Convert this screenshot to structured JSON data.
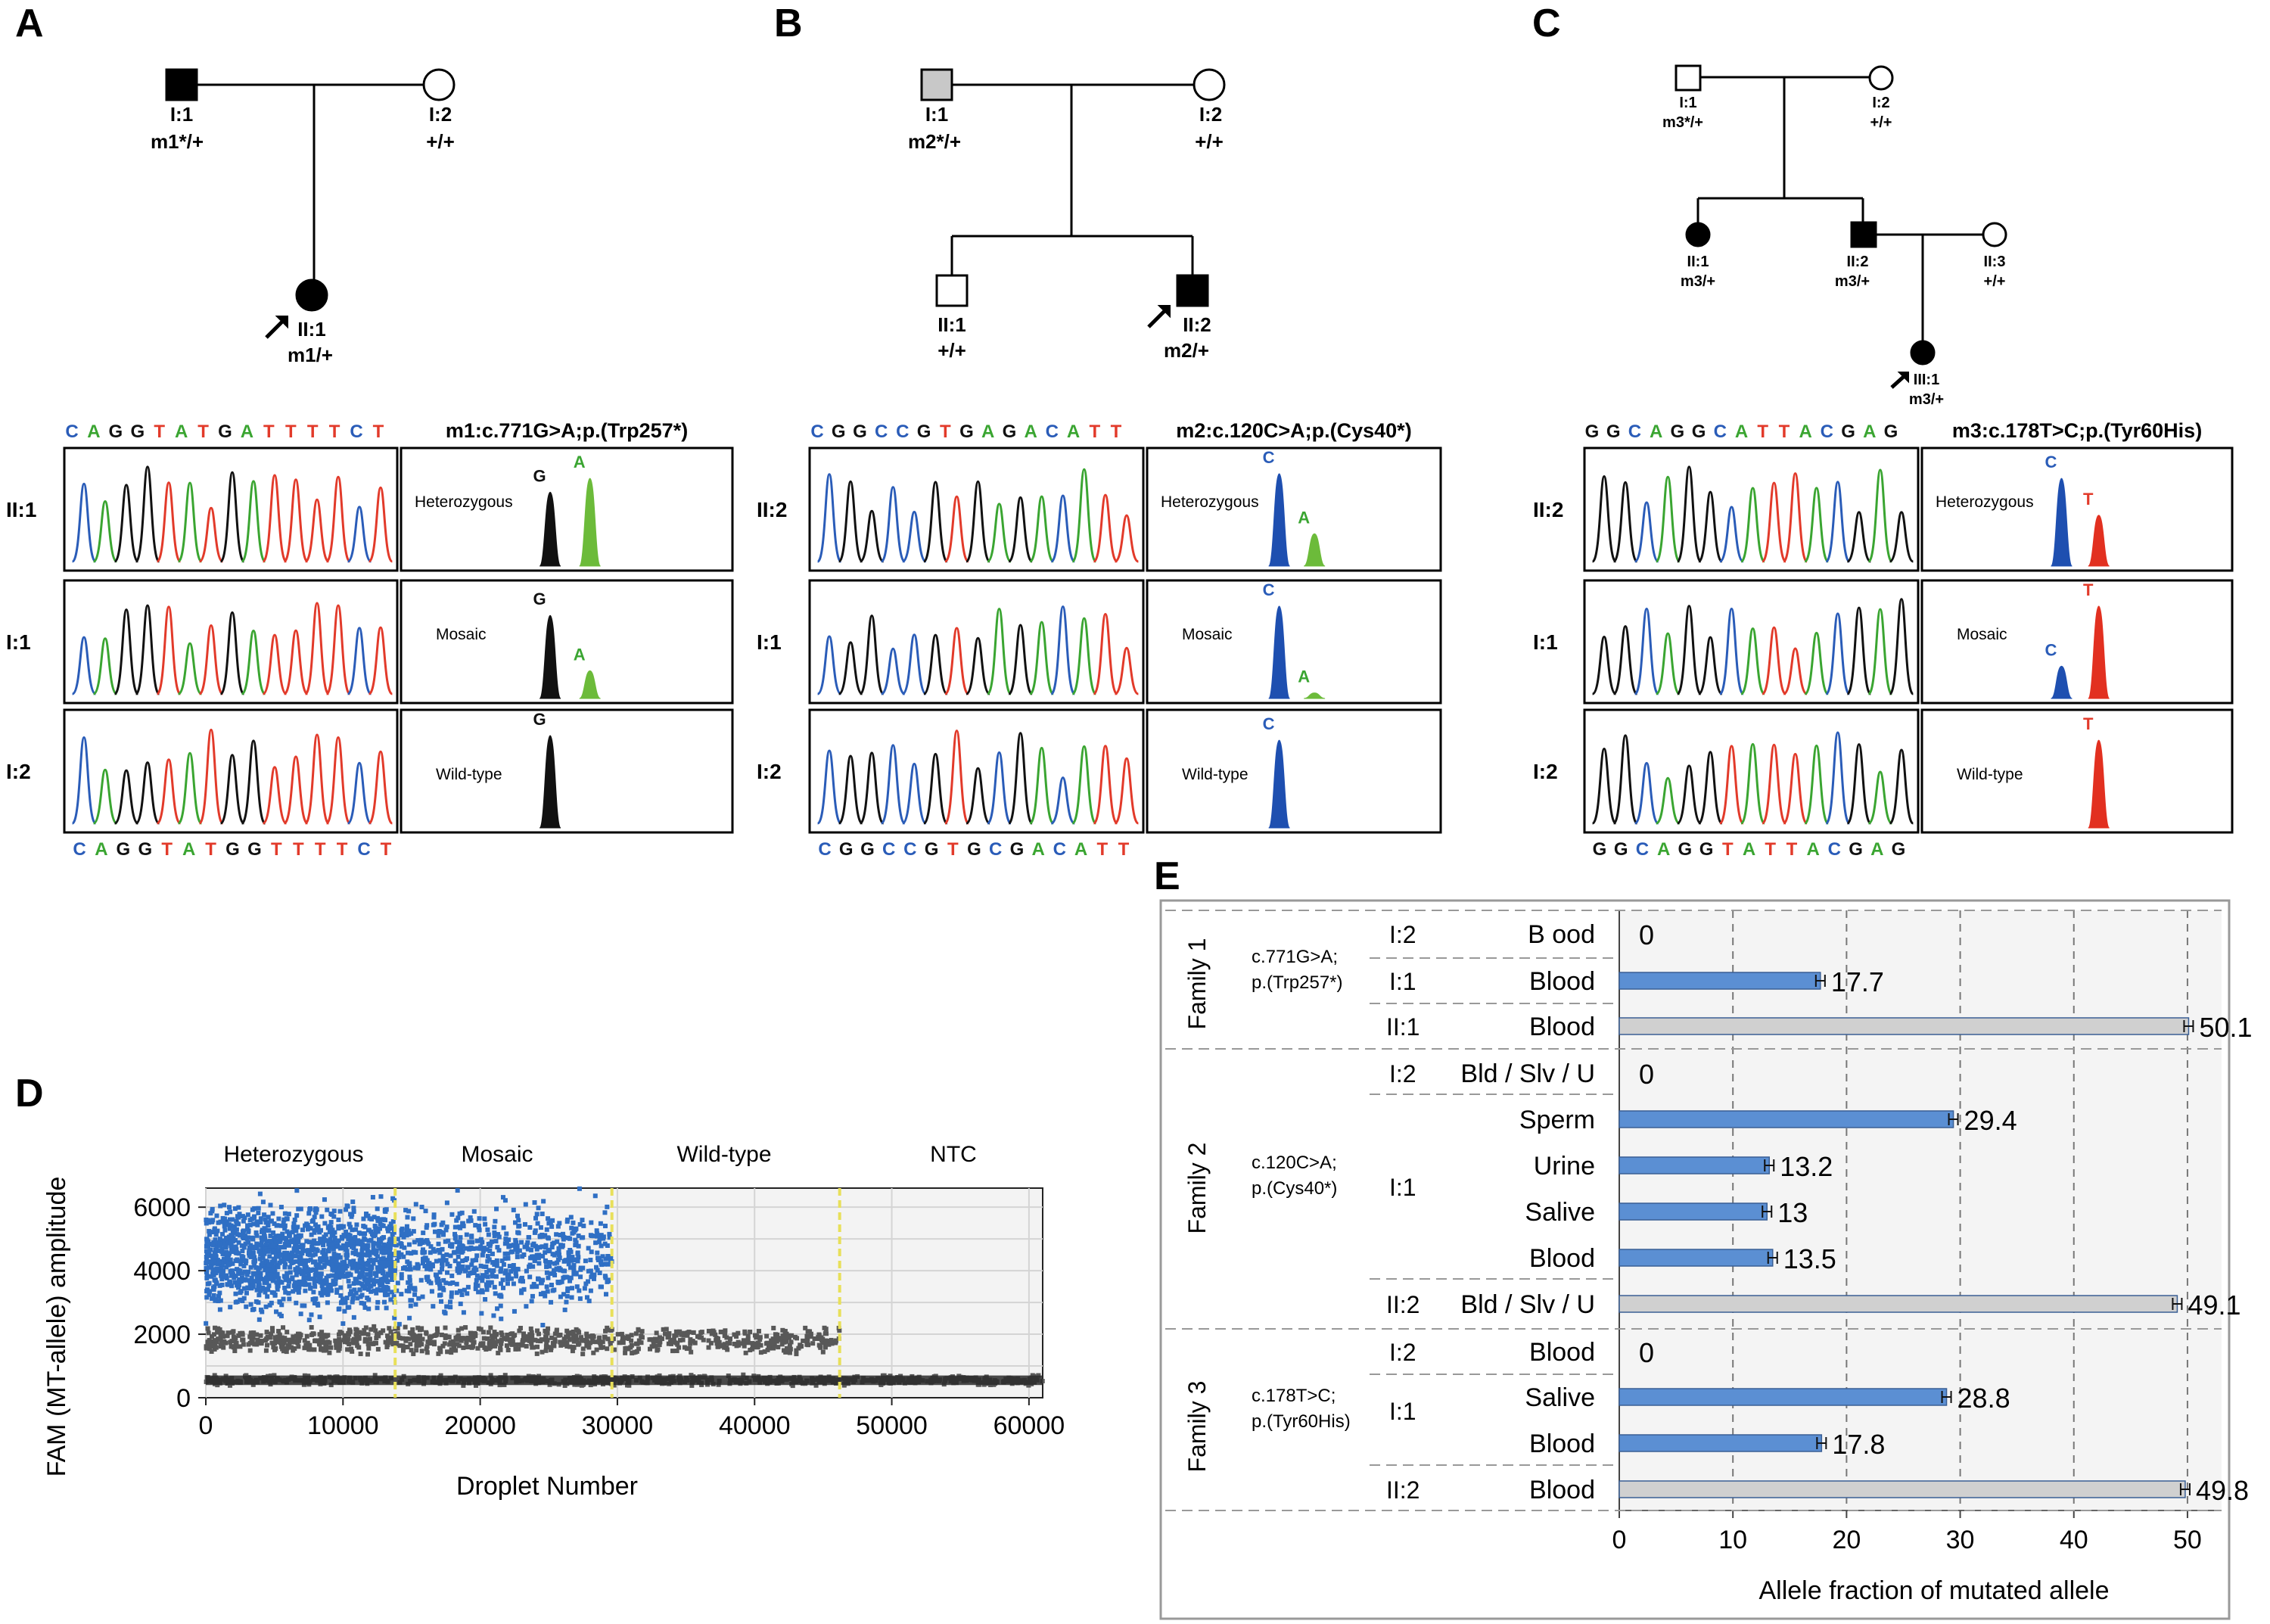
{
  "panels": {
    "A": {
      "letter": "A",
      "pedigree": {
        "father": {
          "id": "I:1",
          "genotype": "m1*/+"
        },
        "mother": {
          "id": "I:2",
          "genotype": "+/+"
        },
        "proband": {
          "id": "II:1",
          "genotype": "m1/+"
        }
      },
      "seq_top": [
        "C",
        "A",
        "G",
        "G",
        "T",
        "A",
        "T",
        "G",
        "A",
        "T",
        "T",
        "T",
        "T",
        "C",
        "T"
      ],
      "seq_bottom": [
        "C",
        "A",
        "G",
        "G",
        "T",
        "A",
        "T",
        "G",
        "G",
        "T",
        "T",
        "T",
        "T",
        "C",
        "T"
      ],
      "mutation_label": "m1:c.771G>A;p.(Trp257*)",
      "rows": [
        {
          "row_label": "II:1",
          "state": "Heterozygous",
          "allele1": "G",
          "allele2": "A",
          "peak1": 0.8,
          "peak2": 0.95
        },
        {
          "row_label": "I:1",
          "state": "Mosaic",
          "allele1": "G",
          "allele2": "A",
          "peak1": 0.9,
          "peak2": 0.3
        },
        {
          "row_label": "I:2",
          "state": "Wild-type",
          "allele1": "G",
          "allele2": "",
          "peak1": 1.0,
          "peak2": 0
        }
      ]
    },
    "B": {
      "letter": "B",
      "pedigree": {
        "father": {
          "id": "I:1",
          "genotype": "m2*/+"
        },
        "mother": {
          "id": "I:2",
          "genotype": "+/+"
        },
        "sibling": {
          "id": "II:1",
          "genotype": "+/+"
        },
        "proband": {
          "id": "II:2",
          "genotype": "m2/+"
        }
      },
      "seq_top": [
        "C",
        "G",
        "G",
        "C",
        "C",
        "G",
        "T",
        "G",
        "A",
        "G",
        "A",
        "C",
        "A",
        "T",
        "T"
      ],
      "seq_bottom": [
        "C",
        "G",
        "G",
        "C",
        "C",
        "G",
        "T",
        "G",
        "C",
        "G",
        "A",
        "C",
        "A",
        "T",
        "T"
      ],
      "mutation_label": "m2:c.120C>A;p.(Cys40*)",
      "rows": [
        {
          "row_label": "II:2",
          "state": "Heterozygous",
          "allele1": "C",
          "allele2": "A",
          "peak1": 1.0,
          "peak2": 0.35
        },
        {
          "row_label": "I:1",
          "state": "Mosaic",
          "allele1": "C",
          "allele2": "A",
          "peak1": 1.0,
          "peak2": 0.06
        },
        {
          "row_label": "I:2",
          "state": "Wild-type",
          "allele1": "C",
          "allele2": "",
          "peak1": 0.95,
          "peak2": 0
        }
      ]
    },
    "C": {
      "letter": "C",
      "pedigree": {
        "father": {
          "id": "I:1",
          "genotype": "m3*/+"
        },
        "mother": {
          "id": "I:2",
          "genotype": "+/+"
        },
        "daughter": {
          "id": "II:1",
          "genotype": "m3/+"
        },
        "son": {
          "id": "II:2",
          "genotype": "m3/+"
        },
        "spouse": {
          "id": "II:3",
          "genotype": "+/+"
        },
        "proband": {
          "id": "III:1",
          "genotype": "m3/+"
        }
      },
      "seq_top": [
        "G",
        "G",
        "C",
        "A",
        "G",
        "G",
        "C",
        "A",
        "T",
        "T",
        "A",
        "C",
        "G",
        "A",
        "G"
      ],
      "seq_bottom": [
        "G",
        "G",
        "C",
        "A",
        "G",
        "G",
        "T",
        "A",
        "T",
        "T",
        "A",
        "C",
        "G",
        "A",
        "G"
      ],
      "mutation_label": "m3:c.178T>C;p.(Tyr60His)",
      "rows": [
        {
          "row_label": "II:2",
          "state": "Heterozygous",
          "allele1": "C",
          "allele2": "T",
          "peak1": 0.95,
          "peak2": 0.55
        },
        {
          "row_label": "I:1",
          "state": "Mosaic",
          "allele1": "C",
          "allele2": "T",
          "peak1": 0.35,
          "peak2": 1.0
        },
        {
          "row_label": "I:2",
          "state": "Wild-type",
          "allele1": "",
          "allele2": "T",
          "peak1": 0,
          "peak2": 0.95
        }
      ]
    }
  },
  "panel_D": {
    "letter": "D",
    "sections": [
      "Heterozygous",
      "Mosaic",
      "Wild-type",
      "NTC"
    ],
    "colors": {
      "positive": "#2f6fc4",
      "negative": "#585858",
      "divider": "#e8e05a",
      "background": "#f3f3f3"
    }
  },
  "panel_E": {
    "letter": "E",
    "families": [
      {
        "name": "Family 1",
        "mutation_line1": "c.771G>A;",
        "mutation_line2": "p.(Trp257*)"
      },
      {
        "name": "Family 2",
        "mutation_line1": "c.120C>A;",
        "mutation_line2": "p.(Cys40*)"
      },
      {
        "name": "Family 3",
        "mutation_line1": "c.178T>C;",
        "mutation_line2": "p.(Tyr60His)"
      }
    ],
    "rows": [
      {
        "individual": "I:2",
        "sample": "B ood",
        "value": 0,
        "label": "0",
        "color": "blue"
      },
      {
        "individual": "I:1",
        "sample": "Blood",
        "value": 17.7,
        "label": "17.7",
        "color": "blue"
      },
      {
        "individual": "II:1",
        "sample": "Blood",
        "value": 50.1,
        "label": "50.1",
        "color": "grey"
      },
      {
        "individual": "I:2",
        "sample": "Bld / Slv / U",
        "value": 0,
        "label": "0",
        "color": "blue"
      },
      {
        "individual": "",
        "sample": "Sperm",
        "value": 29.4,
        "label": "29.4",
        "color": "blue"
      },
      {
        "individual": "",
        "sample": "Urine",
        "value": 13.2,
        "label": "13.2",
        "color": "blue"
      },
      {
        "individual": "I:1",
        "sample": "Salive",
        "value": 13,
        "label": "13",
        "color": "blue"
      },
      {
        "individual": "",
        "sample": "Blood",
        "value": 13.5,
        "label": "13.5",
        "color": "blue"
      },
      {
        "individual": "II:2",
        "sample": "Bld / Slv / U",
        "value": 49.1,
        "label": "49.1",
        "color": "grey"
      },
      {
        "individual": "I:2",
        "sample": "Blood",
        "value": 0,
        "label": "0",
        "color": "blue"
      },
      {
        "individual": "I:1",
        "sample": "Salive",
        "value": 28.8,
        "label": "28.8",
        "color": "blue"
      },
      {
        "individual": "",
        "sample": "Blood",
        "value": 17.8,
        "label": "17.8",
        "color": "blue"
      },
      {
        "individual": "II:2",
        "sample": "Blood",
        "value": 49.8,
        "label": "49.8",
        "color": "grey"
      }
    ],
    "colors": {
      "blue": "#5b8fd3",
      "grey": "#d0d0d0"
    }
  },
  "chart_data": [
    {
      "type": "scatter",
      "title": "",
      "xlabel": "Droplet Number",
      "ylabel": "FAM (MT-allele) amplitude",
      "xlim": [
        0,
        61000
      ],
      "ylim": [
        0,
        6600
      ],
      "xticks": [
        "0",
        "10000",
        "20000",
        "30000",
        "40000",
        "50000",
        "60000"
      ],
      "yticks": [
        "0",
        "2000",
        "4000",
        "6000"
      ],
      "section_boundaries": [
        13800,
        29600,
        46200
      ],
      "series": [
        {
          "name": "Heterozygous positive droplets",
          "x_range": [
            0,
            13800
          ],
          "y_range": [
            3000,
            5800
          ]
        },
        {
          "name": "Mosaic positive droplets",
          "x_range": [
            13800,
            29600
          ],
          "y_range": [
            3000,
            5800
          ]
        },
        {
          "name": "Negative droplets upper band",
          "x_range": [
            0,
            46200
          ],
          "y_range": [
            1400,
            2200
          ]
        },
        {
          "name": "Negative droplets baseline",
          "x_range": [
            0,
            61000
          ],
          "y_range": [
            400,
            700
          ]
        }
      ]
    },
    {
      "type": "bar",
      "orientation": "horizontal",
      "xlabel": "Allele fraction of mutated allele",
      "xlim": [
        0,
        55
      ],
      "xticks": [
        "0",
        "10",
        "20",
        "30",
        "40",
        "50"
      ],
      "categories": [
        "F1 I:2 Blood",
        "F1 I:1 Blood",
        "F1 II:1 Blood",
        "F2 I:2 Bld/Slv/U",
        "F2 I:1 Sperm",
        "F2 I:1 Urine",
        "F2 I:1 Salive",
        "F2 I:1 Blood",
        "F2 II:2 Bld/Slv/U",
        "F3 I:2 Blood",
        "F3 I:1 Salive",
        "F3 I:1 Blood",
        "F3 II:2 Blood"
      ],
      "values": [
        0,
        17.7,
        50.1,
        0,
        29.4,
        13.2,
        13,
        13.5,
        49.1,
        0,
        28.8,
        17.8,
        49.8
      ]
    }
  ]
}
